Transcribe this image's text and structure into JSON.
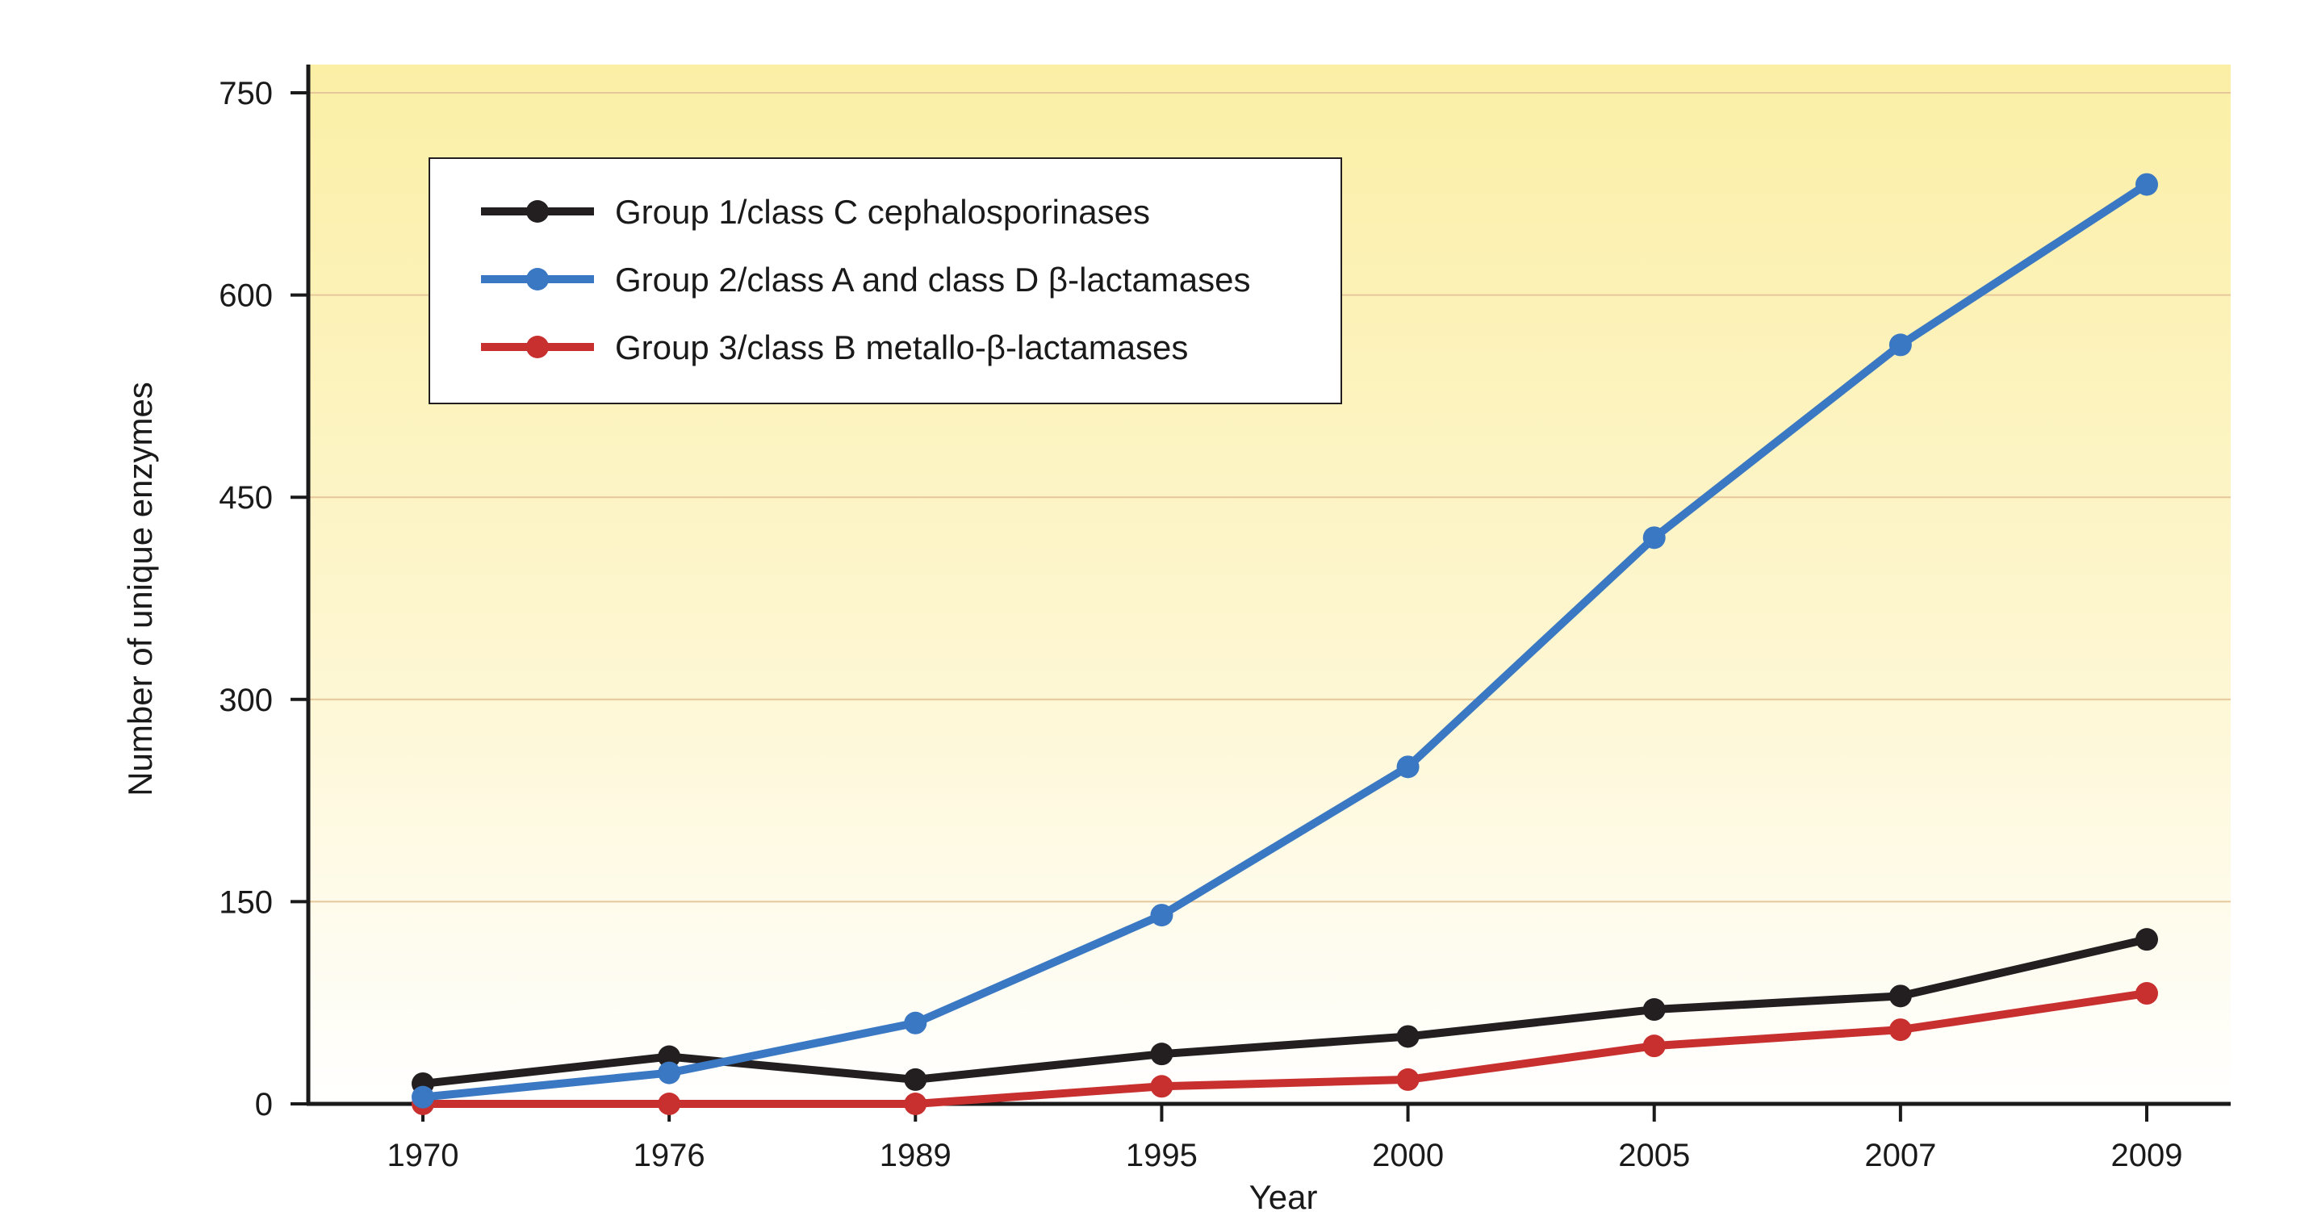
{
  "chart_data": {
    "type": "line",
    "title": "",
    "xlabel": "Year",
    "ylabel": "Number of unique enzymes",
    "categories": [
      "1970",
      "1976",
      "1989",
      "1995",
      "2000",
      "2005",
      "2007",
      "2009"
    ],
    "ylim": [
      0,
      750
    ],
    "yticks": [
      0,
      150,
      300,
      450,
      600,
      750
    ],
    "grid": "horizontal",
    "legend": "top-left",
    "background": "gradient from light yellow at top to white at bottom",
    "series": [
      {
        "name": "Group 1/class C cephalosporinases",
        "color": "#231f20",
        "values": [
          15,
          35,
          18,
          37,
          50,
          70,
          80,
          122
        ]
      },
      {
        "name": "Group 2/class A and class D β-lactamases",
        "color": "#3a78c3",
        "values": [
          5,
          23,
          60,
          140,
          250,
          420,
          563,
          682
        ]
      },
      {
        "name": "Group 3/class B metallo-β-lactamases",
        "color": "#c8302f",
        "values": [
          0,
          0,
          0,
          13,
          18,
          43,
          55,
          82
        ]
      }
    ]
  }
}
